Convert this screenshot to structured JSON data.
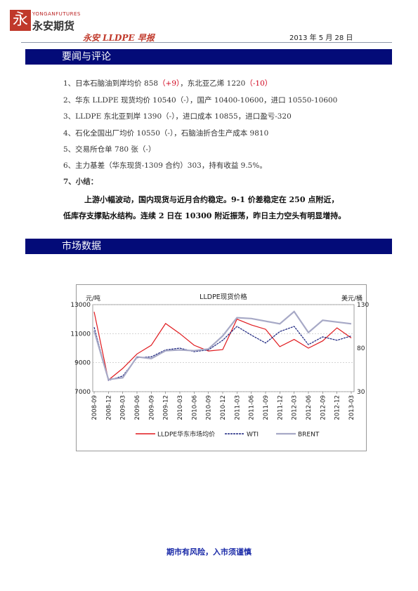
{
  "header": {
    "logo_glyph": "永",
    "logo_en": "YONGANFUTURES",
    "logo_cn": "永安期货",
    "title": "永安 LLDPE 早报",
    "date": "2013 年 5 月 28 日"
  },
  "section1": {
    "title": "要闻与评论"
  },
  "news": [
    {
      "prefix": "1、日本石脑油到岸均价 858",
      "chg1": "（+9）",
      "mid": "，东北亚乙烯 1220",
      "chg2": "（-10）"
    },
    {
      "text": "2、华东 LLDPE 现货均价 10540（-），国产 10400-10600，进口 10550-10600"
    },
    {
      "text": "3、LLDPE 东北亚到岸 1390（-），进口成本 10855，进口盈亏-320"
    },
    {
      "text": "4、石化全国出厂均价 10550（-），石脑油折合生产成本 9810"
    },
    {
      "text": "5、交易所仓单 780 张（-）"
    },
    {
      "text": "6、主力基差（华东现货-1309 合约）303，持有收益 9.5%。"
    },
    {
      "text": "7、小结："
    }
  ],
  "summary": {
    "line1": "上游小幅波动，国内现货与近月合约稳定。9-1 价差稳定在 250 点附近，",
    "line2": "低库存支撑贴水结构。连续 2 日在 10300 附近振荡，昨日主力空头有明显增持。"
  },
  "section2": {
    "title": "市场数据"
  },
  "chart_data": {
    "type": "line",
    "title": "LLDPE现货价格",
    "ylabel_left": "元/吨",
    "ylabel_right": "美元/桶",
    "ylim_left": [
      7000,
      13000
    ],
    "ylim_right": [
      30,
      130
    ],
    "yticks_left": [
      13000,
      11000,
      9000,
      7000
    ],
    "yticks_right": [
      130,
      80,
      30
    ],
    "xticks": [
      "2008-09",
      "2008-12",
      "2009-03",
      "2009-06",
      "2009-09",
      "2009-12",
      "2010-03",
      "2010-06",
      "2010-09",
      "2010-12",
      "2011-03",
      "2011-06",
      "2011-09",
      "2011-12",
      "2012-03",
      "2012-06",
      "2012-09",
      "2012-12",
      "2013-03"
    ],
    "grid": true,
    "legend": "bottom",
    "series": [
      {
        "name": "LLDPE华东市场均价",
        "axis": "left",
        "color": "#e0191d",
        "values": [
          12500,
          7800,
          8600,
          9600,
          10200,
          11700,
          11000,
          10200,
          9800,
          9900,
          12000,
          11600,
          11300,
          10100,
          10600,
          10000,
          10500,
          11400,
          10700
        ]
      },
      {
        "name": "WTI",
        "axis": "right",
        "color": "#1a237e",
        "values": [
          104,
          43,
          48,
          69,
          70,
          78,
          80,
          76,
          78,
          89,
          105,
          95,
          86,
          99,
          105,
          84,
          93,
          89,
          94
        ]
      },
      {
        "name": "BRENT",
        "axis": "right",
        "color": "#a7a9c6",
        "values": [
          100,
          44,
          46,
          70,
          68,
          77,
          78,
          77,
          79,
          94,
          115,
          114,
          111,
          108,
          122,
          98,
          112,
          110,
          108
        ]
      }
    ]
  },
  "footer": {
    "text": "期市有风险，入市须谨慎"
  }
}
